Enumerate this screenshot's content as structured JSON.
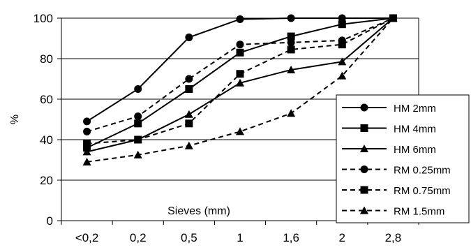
{
  "chart_data": {
    "type": "line",
    "title": "",
    "xlabel": "Sieves (mm)",
    "ylabel": "%",
    "categories": [
      "<0,2",
      "0,2",
      "0,5",
      "1",
      "1,6",
      "2",
      "2,8"
    ],
    "ylim": [
      0,
      100
    ],
    "yticks": [
      0,
      20,
      40,
      60,
      80,
      100
    ],
    "grid": "horizontal",
    "legend_position": "right",
    "series": [
      {
        "name": "HM 2mm",
        "marker": "circle",
        "dash": "solid",
        "values": [
          49,
          65,
          90.5,
          99.5,
          100,
          100,
          100
        ]
      },
      {
        "name": "HM 4mm",
        "marker": "square",
        "dash": "solid",
        "values": [
          36,
          48,
          65,
          83,
          91,
          97,
          100
        ]
      },
      {
        "name": "HM 6mm",
        "marker": "triangle",
        "dash": "solid",
        "values": [
          34,
          40,
          52.5,
          68,
          74.5,
          78.5,
          100
        ]
      },
      {
        "name": "RM 0.25mm",
        "marker": "circle",
        "dash": "dashed",
        "values": [
          44,
          51.5,
          70,
          87,
          88,
          89,
          100
        ]
      },
      {
        "name": "RM 0.75mm",
        "marker": "square",
        "dash": "dashed",
        "values": [
          38,
          40,
          48,
          72.5,
          84.5,
          87,
          100
        ]
      },
      {
        "name": "RM 1.5mm",
        "marker": "triangle",
        "dash": "dashed",
        "values": [
          29,
          32.5,
          37,
          44,
          53,
          71.5,
          100
        ]
      }
    ]
  }
}
